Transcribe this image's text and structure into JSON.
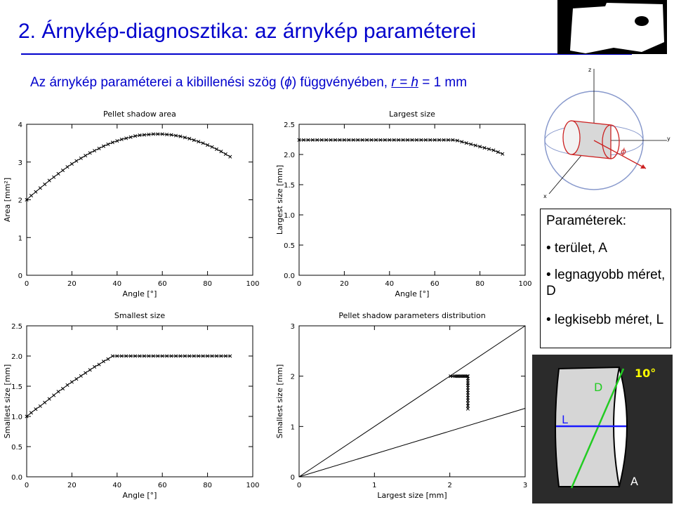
{
  "slide": {
    "title": "2. Árnykép-diagnosztika: az árnykép paraméterei",
    "subtitle_prefix": "Az árnykép paraméterei a kibillenési szög (",
    "subtitle_phi": "ϕ",
    "subtitle_mid": ") függvényében, ",
    "subtitle_eq": "r = h",
    "subtitle_suffix": " = 1 mm",
    "accent_color": "#0000cc"
  },
  "params": {
    "header": "Paraméterek:",
    "items": [
      "• terület, A",
      "• legnagyobb méret, D",
      "• legkisebb méret, L"
    ]
  },
  "diagram": {
    "axis_labels": [
      "z",
      "y",
      "x"
    ],
    "angle_symbol": "ϕ"
  },
  "photo": {
    "angle_label": "10°",
    "label_d": "D",
    "label_l": "L",
    "label_a": "A",
    "d_color": "#22cc22",
    "l_color": "#1a1aff",
    "angle_color": "#ffff00"
  },
  "chart_data": [
    {
      "type": "scatter",
      "title": "Pellet shadow area",
      "xlabel": "Angle [°]",
      "ylabel": "Area [mm²]",
      "xlim": [
        0,
        100
      ],
      "ylim": [
        0,
        4
      ],
      "xticks": [
        "0",
        "20",
        "40",
        "60",
        "80",
        "100"
      ],
      "yticks": [
        "0",
        "1",
        "2",
        "3",
        "4"
      ],
      "x": [
        0,
        2,
        4,
        6,
        8,
        10,
        12,
        14,
        16,
        18,
        20,
        22,
        24,
        26,
        28,
        30,
        32,
        34,
        36,
        38,
        40,
        42,
        44,
        46,
        48,
        50,
        52,
        54,
        56,
        58,
        60,
        62,
        64,
        66,
        68,
        70,
        72,
        74,
        76,
        78,
        80,
        82,
        84,
        86,
        88,
        90
      ],
      "y": [
        2.0,
        2.11,
        2.21,
        2.31,
        2.41,
        2.51,
        2.6,
        2.69,
        2.78,
        2.87,
        2.95,
        3.03,
        3.1,
        3.17,
        3.24,
        3.3,
        3.36,
        3.42,
        3.47,
        3.52,
        3.56,
        3.6,
        3.63,
        3.66,
        3.69,
        3.71,
        3.72,
        3.73,
        3.74,
        3.74,
        3.74,
        3.73,
        3.72,
        3.7,
        3.68,
        3.65,
        3.62,
        3.58,
        3.54,
        3.5,
        3.45,
        3.4,
        3.34,
        3.28,
        3.21,
        3.14
      ]
    },
    {
      "type": "scatter",
      "title": "Largest size",
      "xlabel": "Angle [°]",
      "ylabel": "Largest size [mm]",
      "xlim": [
        0,
        100
      ],
      "ylim": [
        0,
        2.5
      ],
      "xticks": [
        "0",
        "20",
        "40",
        "60",
        "80",
        "100"
      ],
      "yticks": [
        "0.0",
        "0.5",
        "1.0",
        "1.5",
        "2.0",
        "2.5"
      ],
      "x": [
        0,
        2,
        4,
        6,
        8,
        10,
        12,
        14,
        16,
        18,
        20,
        22,
        24,
        26,
        28,
        30,
        32,
        34,
        36,
        38,
        40,
        42,
        44,
        46,
        48,
        50,
        52,
        54,
        56,
        58,
        60,
        62,
        64,
        66,
        68,
        70,
        72,
        74,
        76,
        78,
        80,
        82,
        84,
        86,
        88,
        90
      ],
      "y": [
        2.24,
        2.24,
        2.24,
        2.24,
        2.24,
        2.24,
        2.24,
        2.24,
        2.24,
        2.24,
        2.24,
        2.24,
        2.24,
        2.24,
        2.24,
        2.24,
        2.24,
        2.24,
        2.24,
        2.24,
        2.24,
        2.24,
        2.24,
        2.24,
        2.24,
        2.24,
        2.24,
        2.24,
        2.24,
        2.24,
        2.24,
        2.24,
        2.24,
        2.24,
        2.24,
        2.23,
        2.21,
        2.19,
        2.17,
        2.15,
        2.13,
        2.11,
        2.09,
        2.07,
        2.04,
        2.01
      ]
    },
    {
      "type": "scatter",
      "title": "Smallest size",
      "xlabel": "Angle [°]",
      "ylabel": "Smallest size [mm]",
      "xlim": [
        0,
        100
      ],
      "ylim": [
        0,
        2.5
      ],
      "xticks": [
        "0",
        "20",
        "40",
        "60",
        "80",
        "100"
      ],
      "yticks": [
        "0.0",
        "0.5",
        "1.0",
        "1.5",
        "2.0",
        "2.5"
      ],
      "x": [
        0,
        2,
        4,
        6,
        8,
        10,
        12,
        14,
        16,
        18,
        20,
        22,
        24,
        26,
        28,
        30,
        32,
        34,
        36,
        38,
        40,
        42,
        44,
        46,
        48,
        50,
        52,
        54,
        56,
        58,
        60,
        62,
        64,
        66,
        68,
        70,
        72,
        74,
        76,
        78,
        80,
        82,
        84,
        86,
        88,
        90
      ],
      "y": [
        1.0,
        1.06,
        1.12,
        1.17,
        1.23,
        1.29,
        1.35,
        1.41,
        1.46,
        1.52,
        1.57,
        1.62,
        1.67,
        1.72,
        1.77,
        1.82,
        1.86,
        1.91,
        1.95,
        2.0,
        2.0,
        2.0,
        2.0,
        2.0,
        2.0,
        2.0,
        2.0,
        2.0,
        2.0,
        2.0,
        2.0,
        2.0,
        2.0,
        2.0,
        2.0,
        2.0,
        2.0,
        2.0,
        2.0,
        2.0,
        2.0,
        2.0,
        2.0,
        2.0,
        2.0,
        2.0
      ]
    },
    {
      "type": "scatter",
      "title": "Pellet shadow parameters distribution",
      "xlabel": "Largest size [mm]",
      "ylabel": "Smallest size [mm]",
      "xlim": [
        0,
        3
      ],
      "ylim": [
        0,
        3
      ],
      "xticks": [
        "0",
        "1",
        "2",
        "3"
      ],
      "yticks": [
        "0",
        "1",
        "2",
        "3"
      ],
      "x": [
        2.01,
        2.04,
        2.07,
        2.09,
        2.11,
        2.13,
        2.15,
        2.17,
        2.19,
        2.21,
        2.23,
        2.24,
        2.24,
        2.24,
        2.24,
        2.24,
        2.24,
        2.24,
        2.24,
        2.24,
        2.24,
        2.24,
        2.24,
        2.24,
        2.24
      ],
      "y": [
        2.0,
        2.0,
        2.0,
        2.0,
        2.0,
        2.0,
        2.0,
        2.0,
        2.0,
        2.0,
        2.0,
        2.0,
        1.95,
        1.91,
        1.86,
        1.82,
        1.77,
        1.72,
        1.67,
        1.62,
        1.57,
        1.52,
        1.46,
        1.41,
        1.35
      ],
      "reference_lines": [
        {
          "x": [
            0,
            3
          ],
          "y": [
            0,
            3
          ]
        },
        {
          "x": [
            0,
            3
          ],
          "y": [
            0,
            1.36
          ]
        }
      ]
    }
  ]
}
